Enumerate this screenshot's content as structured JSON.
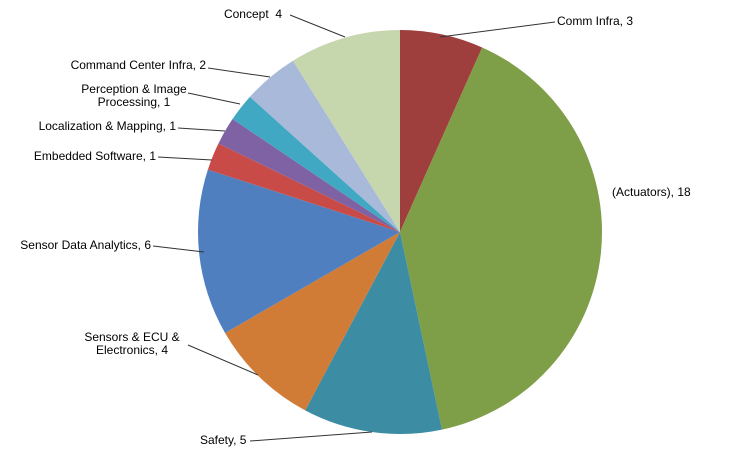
{
  "chart_data": {
    "type": "pie",
    "values": [
      3,
      18,
      5,
      4,
      6,
      1,
      1,
      1,
      2,
      4
    ],
    "value_labels": [
      [
        "Comm Infra, 3"
      ],
      [
        "(Actuators), 18"
      ],
      [
        "Safety, 5"
      ],
      [
        "Sensors & ECU &",
        "Electronics, 4"
      ],
      [
        "Sensor Data Analytics, 6"
      ],
      [
        "Embedded Software, 1"
      ],
      [
        "Localization & Mapping, 1"
      ],
      [
        "Perception & Image",
        "Processing, 1"
      ],
      [
        "Command Center Infra, 2"
      ],
      [
        "Concept  4"
      ]
    ],
    "colors": [
      "#9e3f3d",
      "#7f9e48",
      "#3c8ca3",
      "#d07c37",
      "#4f7fbf",
      "#c94b47",
      "#7e62a3",
      "#40a8c2",
      "#a9b9da",
      "#c6d6ad"
    ]
  }
}
